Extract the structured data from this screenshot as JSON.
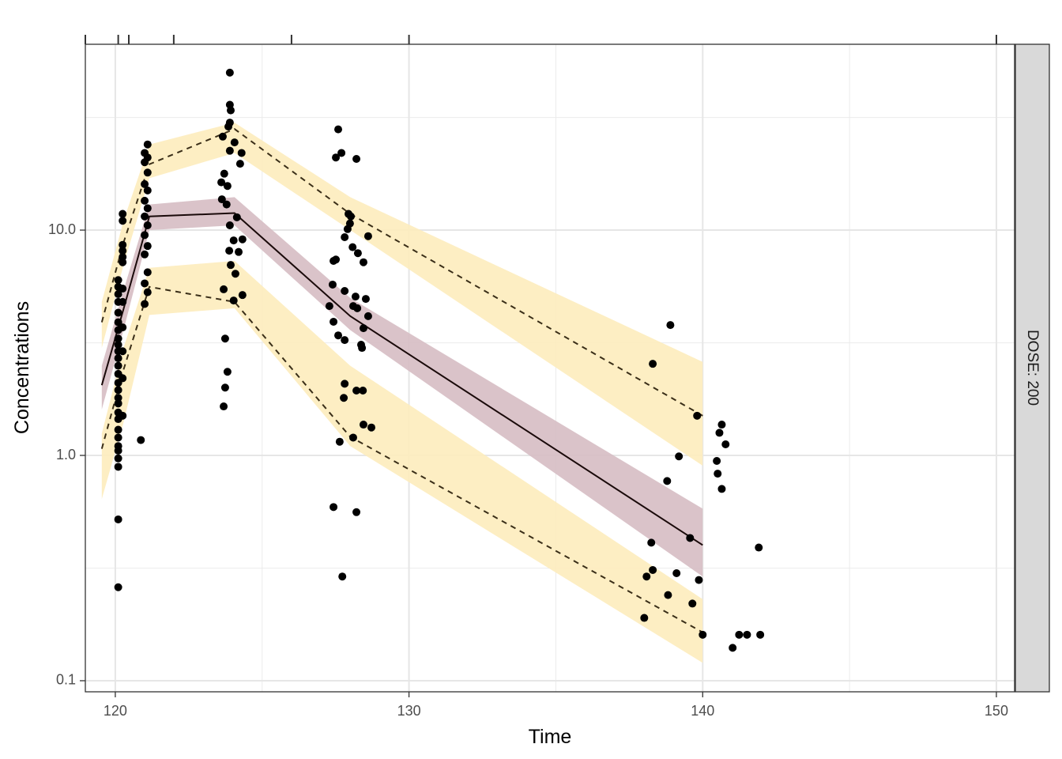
{
  "chart_data": {
    "type": "vpc",
    "x_label": "Time",
    "y_label": "Concentrations",
    "facet_label": "DOSE: 200",
    "xlim": [
      118.98,
      150.62
    ],
    "xticks": [
      120,
      130,
      140,
      150
    ],
    "xminor": [
      125,
      135,
      145
    ],
    "ylim": [
      0.0893,
      66.8
    ],
    "ylog": true,
    "yticks": [
      {
        "value": 0.1,
        "label": "0.1"
      },
      {
        "value": 1,
        "label": "1.0"
      },
      {
        "value": 10,
        "label": "10.0"
      }
    ],
    "yminor": [
      0.316,
      3.16,
      31.6
    ],
    "grid": true,
    "bin_edges": [
      118.98,
      120.1,
      120.46,
      121.99,
      126.0,
      130.0,
      150.0
    ],
    "quantile_x": [
      119.54,
      120.28,
      121.16,
      124.06,
      128.0,
      140.0
    ],
    "quantiles": [
      {
        "values": [
          1.07,
          2.4,
          5.6,
          4.8,
          1.21,
          0.164
        ],
        "lower": [
          0.64,
          1.4,
          4.2,
          4.5,
          1.1,
          0.12
        ],
        "upper": [
          1.25,
          3.0,
          6.8,
          7.3,
          2.5,
          0.23
        ],
        "band_color": "#fdecbd",
        "line_color": "#3a2e18",
        "dashed": true
      },
      {
        "values": [
          2.05,
          4.46,
          11.5,
          11.9,
          4.15,
          0.4
        ],
        "lower": [
          1.6,
          3.6,
          10.0,
          10.5,
          3.6,
          0.29
        ],
        "upper": [
          2.5,
          5.4,
          13.0,
          14.0,
          5.0,
          0.58
        ],
        "band_color": "#d6bcc3",
        "line_color": "#1a0a0a",
        "dashed": false
      },
      {
        "values": [
          3.9,
          8.8,
          19.6,
          28.1,
          11.8,
          1.5
        ],
        "lower": [
          3.0,
          7.0,
          17.0,
          22.0,
          10.0,
          0.9
        ],
        "upper": [
          4.8,
          11,
          24,
          30,
          14,
          2.6
        ],
        "band_color": "#fdecbd",
        "line_color": "#3a2e18",
        "dashed": true
      }
    ],
    "observed": {
      "color": "#000000",
      "x": [
        120.1,
        120.1,
        120.1,
        120.1,
        120.1,
        120.1,
        120.1,
        120.1,
        120.1,
        120.1,
        120.1,
        120.1,
        120.1,
        120.1,
        120.1,
        120.1,
        120.1,
        120.1,
        120.1,
        120.1,
        120.1,
        120.1,
        120.1,
        120.1,
        120.1,
        120.1,
        120.1,
        120.25,
        120.25,
        120.25,
        120.25,
        120.25,
        120.25,
        120.25,
        120.25,
        120.25,
        120.25,
        120.25,
        120.25,
        120.87,
        121.0,
        121.1,
        121.0,
        121.1,
        121.0,
        121.1,
        121.0,
        121.1,
        121.0,
        121.1,
        121.0,
        121.1,
        121.0,
        121.1,
        121.0,
        121.1,
        121.0,
        121.1,
        123.69,
        123.74,
        123.82,
        123.74,
        123.69,
        124.03,
        124.09,
        123.93,
        123.88,
        124.2,
        124.03,
        124.33,
        124.33,
        123.9,
        124.14,
        123.79,
        123.63,
        123.82,
        123.71,
        123.61,
        124.25,
        124.3,
        123.9,
        124.06,
        123.66,
        123.85,
        123.9,
        123.93,
        123.9,
        123.9,
        127.59,
        127.7,
        127.51,
        128.21,
        127.94,
        128.02,
        127.91,
        127.99,
        127.81,
        128.08,
        128.26,
        128.45,
        128.61,
        127.51,
        127.43,
        127.4,
        127.81,
        128.18,
        128.53,
        127.29,
        128.1,
        128.24,
        128.61,
        128.45,
        127.43,
        127.59,
        127.81,
        128.37,
        128.4,
        127.81,
        127.78,
        128.21,
        128.43,
        128.45,
        128.72,
        128.1,
        127.64,
        127.43,
        128.21,
        127.73,
        138.3,
        138.9,
        139.19,
        138.79,
        138.25,
        138.3,
        138.09,
        139.11,
        138.82,
        138.01,
        139.65,
        139.57,
        139.87,
        140.0,
        139.81,
        140.65,
        140.57,
        140.78,
        140.48,
        140.51,
        140.65,
        141.02,
        141.24,
        141.51,
        141.96,
        141.91
      ],
      "values": [
        0.26,
        0.52,
        0.89,
        0.97,
        1.05,
        1.1,
        1.2,
        1.3,
        1.45,
        1.55,
        1.7,
        1.8,
        1.95,
        2.1,
        2.3,
        2.5,
        2.7,
        2.9,
        3.1,
        3.3,
        3.6,
        3.9,
        4.3,
        4.8,
        5.2,
        5.6,
        6.0,
        1.5,
        2.2,
        2.9,
        3.7,
        4.8,
        5.5,
        7.2,
        7.6,
        8.1,
        8.6,
        11,
        11.8,
        1.17,
        4.7,
        5.3,
        5.8,
        6.5,
        7.8,
        8.5,
        9.5,
        10.5,
        11.5,
        12.5,
        13.5,
        15,
        16,
        18,
        20,
        21,
        22,
        24,
        1.65,
        2.0,
        2.35,
        3.3,
        5.46,
        4.87,
        6.4,
        7.0,
        8.1,
        8.0,
        9.0,
        9.1,
        5.15,
        10.5,
        11.4,
        13.0,
        13.7,
        15.7,
        17.8,
        16.3,
        19.7,
        22,
        22.5,
        24.5,
        26,
        28.8,
        30,
        34,
        36,
        50,
        28,
        22,
        21,
        20.7,
        11.8,
        11.5,
        10.1,
        10.7,
        9.3,
        8.4,
        7.9,
        7.2,
        9.4,
        7.4,
        7.3,
        5.73,
        5.37,
        5.07,
        4.95,
        4.6,
        4.6,
        4.5,
        4.15,
        3.67,
        3.92,
        3.41,
        3.25,
        3.1,
        3.0,
        2.08,
        1.8,
        1.94,
        1.94,
        1.37,
        1.33,
        1.2,
        1.15,
        0.59,
        0.56,
        0.29,
        2.55,
        3.79,
        0.99,
        0.77,
        0.41,
        0.31,
        0.29,
        0.3,
        0.24,
        0.19,
        0.22,
        0.43,
        0.28,
        0.16,
        1.5,
        1.37,
        1.26,
        1.12,
        0.945,
        0.83,
        0.71,
        0.14,
        0.16,
        0.16,
        0.16,
        0.39
      ]
    }
  }
}
